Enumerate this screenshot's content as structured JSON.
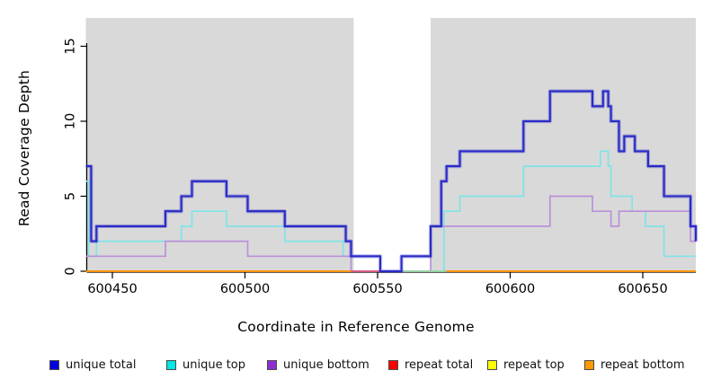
{
  "chart": {
    "title": "",
    "xlabel": "Coordinate in Reference Genome",
    "ylabel": "Read Coverage Depth"
  },
  "legend": {
    "items": [
      {
        "name": "unique-total",
        "label": "unique total",
        "color": "#0000dd"
      },
      {
        "name": "unique-top",
        "label": "unique top",
        "color": "#00e5e5"
      },
      {
        "name": "unique-bottom",
        "label": "unique bottom",
        "color": "#8d2fd0"
      },
      {
        "name": "repeat-total",
        "label": "repeat total",
        "color": "#ff0000"
      },
      {
        "name": "repeat-top",
        "label": "repeat top",
        "color": "#ffff00"
      },
      {
        "name": "repeat-bottom",
        "label": "repeat bottom",
        "color": "#ff9900"
      }
    ]
  },
  "chart_data": {
    "type": "line",
    "subtype": "step-coverage-plot",
    "title": "",
    "xlabel": "Coordinate in Reference Genome",
    "ylabel": "Read Coverage Depth",
    "xlim": [
      600440,
      600670
    ],
    "ylim": [
      0,
      17
    ],
    "grid": false,
    "legend_position": "bottom-horizontal",
    "x_ticks": {
      "values": [
        600450,
        600500,
        600550,
        600600,
        600650
      ],
      "labels": [
        "600450",
        "600500",
        "600550",
        "600600",
        "600650"
      ]
    },
    "y_ticks": {
      "values": [
        0,
        5,
        10,
        15
      ],
      "labels": [
        "0",
        "5",
        "10",
        "15"
      ]
    },
    "shaded_regions": [
      {
        "from": 600440,
        "to": 600541,
        "color": "#d9d9d9",
        "meaning": "shaded coverage block"
      },
      {
        "from": 600570,
        "to": 600670,
        "color": "#d9d9d9",
        "meaning": "shaded coverage block"
      }
    ],
    "series": [
      {
        "name": "unique total",
        "color": "#2a2ac8",
        "width": 2.1,
        "halo": true,
        "breaks": [
          600440,
          600442,
          600444,
          600470,
          600476,
          600480,
          600493,
          600501,
          600515,
          600538,
          600540,
          600551,
          600559,
          600570,
          600574,
          600576,
          600581,
          600605,
          600615,
          600631,
          600635,
          600637,
          600638,
          600641,
          600643,
          600647,
          600652,
          600658,
          600668,
          600670
        ],
        "values": [
          7,
          2,
          3,
          4,
          5,
          6,
          5,
          4,
          3,
          2,
          1,
          0,
          1,
          3,
          6,
          7,
          8,
          10,
          12,
          11,
          12,
          11,
          10,
          8,
          9,
          8,
          7,
          5,
          3
        ],
        "end_drop": 2
      },
      {
        "name": "unique top",
        "color": "#7fe4e6",
        "width": 1.7,
        "halo": false,
        "breaks": [
          600440,
          600441,
          600444,
          600476,
          600480,
          600493,
          600515,
          600537,
          600540,
          600575,
          600581,
          600605,
          600634,
          600637,
          600638,
          600646,
          600651,
          600658,
          600670
        ],
        "values": [
          6,
          1,
          2,
          3,
          4,
          3,
          2,
          1,
          0,
          4,
          5,
          7,
          8,
          7,
          5,
          4,
          3,
          1
        ],
        "end_drop": null
      },
      {
        "name": "unique bottom",
        "color": "#bb8fd9",
        "width": 1.7,
        "halo": false,
        "breaks": [
          600440,
          600470,
          600501,
          600540,
          600570,
          600615,
          600631,
          600638,
          600641,
          600668,
          600670
        ],
        "values": [
          1,
          2,
          1,
          0,
          3,
          5,
          4,
          3,
          4,
          2
        ],
        "end_drop": null
      },
      {
        "name": "repeat total",
        "color": "#dd5577",
        "width": 1.7,
        "breaks": [
          600440,
          600670
        ],
        "values": [
          0
        ],
        "note": "flat at 0; visible only ~600540-600551 (pink segment on baseline)"
      },
      {
        "name": "repeat top",
        "color": "#ffff00",
        "width": 1.7,
        "breaks": [
          600440,
          600670
        ],
        "values": [
          0
        ],
        "note": "flat at 0; hidden under other baseline lines"
      },
      {
        "name": "repeat bottom",
        "color": "#ff9300",
        "width": 2,
        "breaks": [
          600440,
          600670
        ],
        "values": [
          0
        ],
        "note": "flat at 0; orange baseline visible except 600540-600576"
      }
    ],
    "baseline_segments": [
      {
        "name": "repeat-total-visible",
        "from": 600540,
        "to": 600551,
        "color": "#dd5577"
      },
      {
        "name": "overlap-green-visible",
        "from": 600559,
        "to": 600576,
        "color": "#98d6a0"
      },
      {
        "name": "repeat-bottom-visible-left",
        "from": 600440,
        "to": 600540,
        "color": "#ff9300"
      },
      {
        "name": "repeat-bottom-visible-right",
        "from": 600576,
        "to": 600670,
        "color": "#ff9300"
      }
    ]
  }
}
